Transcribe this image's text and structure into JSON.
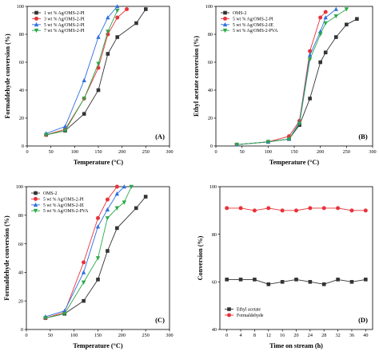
{
  "chart_data": [
    {
      "type": "line",
      "panel_label": "(A)",
      "xlabel": "Temperature (°C)",
      "ylabel": "Formaldehyde conversion (%)",
      "xlim": [
        0,
        300
      ],
      "ylim": [
        0,
        100
      ],
      "xticks": [
        0,
        50,
        100,
        150,
        200,
        250,
        300
      ],
      "yticks": [
        0,
        20,
        40,
        60,
        80,
        100
      ],
      "legend_position": "top-left",
      "series": [
        {
          "name": "1 wt % Ag/OMS-2-PI",
          "color": "#333333",
          "marker": "square",
          "x": [
            40,
            80,
            120,
            150,
            170,
            190,
            230,
            250
          ],
          "y": [
            8,
            11,
            23,
            40,
            66,
            78,
            88,
            98
          ]
        },
        {
          "name": "3 wt % Ag/OMS-2-PI",
          "color": "#e8333a",
          "marker": "circle",
          "x": [
            40,
            80,
            120,
            150,
            170,
            190,
            210
          ],
          "y": [
            8,
            12,
            34,
            56,
            80,
            92,
            98
          ]
        },
        {
          "name": "5 wt % Ag/OMS-2-PI",
          "color": "#2f6fe0",
          "marker": "triangle-up",
          "x": [
            40,
            80,
            120,
            150,
            170,
            190
          ],
          "y": [
            9,
            14,
            47,
            78,
            92,
            100
          ]
        },
        {
          "name": "7 wt % Ag/OMS-2-PI",
          "color": "#2aa84a",
          "marker": "triangle-down",
          "x": [
            40,
            80,
            120,
            150,
            170,
            190
          ],
          "y": [
            8,
            11,
            34,
            59,
            82,
            97
          ]
        }
      ]
    },
    {
      "type": "line",
      "panel_label": "(B)",
      "xlabel": "Temperature (°C)",
      "ylabel": "Ethyl acetate conversion (%)",
      "xlim": [
        0,
        300
      ],
      "ylim": [
        0,
        100
      ],
      "xticks": [
        0,
        50,
        100,
        150,
        200,
        250,
        300
      ],
      "yticks": [
        0,
        20,
        40,
        60,
        80,
        100
      ],
      "legend_position": "top-left",
      "series": [
        {
          "name": "OMS-2",
          "color": "#333333",
          "marker": "square",
          "x": [
            40,
            100,
            140,
            160,
            180,
            200,
            210,
            230,
            250,
            270
          ],
          "y": [
            1,
            3,
            5,
            15,
            34,
            60,
            67,
            78,
            87,
            91
          ]
        },
        {
          "name": "5 wt % Ag/OMS-2-PI",
          "color": "#e8333a",
          "marker": "circle",
          "x": [
            40,
            100,
            140,
            160,
            180,
            200,
            210
          ],
          "y": [
            1,
            3,
            7,
            18,
            68,
            92,
            96
          ]
        },
        {
          "name": "5 wt % Ag/OMS-2-IE",
          "color": "#2f6fe0",
          "marker": "triangle-up",
          "x": [
            40,
            100,
            140,
            160,
            180,
            200,
            210,
            230
          ],
          "y": [
            1,
            3,
            5,
            17,
            65,
            82,
            92,
            98
          ]
        },
        {
          "name": "5 wt % Ag/OMS-2-PVA",
          "color": "#2aa84a",
          "marker": "triangle-down",
          "x": [
            40,
            100,
            140,
            160,
            180,
            200,
            210,
            230,
            250
          ],
          "y": [
            1,
            3,
            5,
            16,
            62,
            80,
            88,
            93,
            98
          ]
        }
      ]
    },
    {
      "type": "line",
      "panel_label": "(C)",
      "xlabel": "Temperature (°C)",
      "ylabel": "Formaldehyde conversion (%)",
      "xlim": [
        0,
        300
      ],
      "ylim": [
        0,
        100
      ],
      "xticks": [
        0,
        50,
        100,
        150,
        200,
        250,
        300
      ],
      "yticks": [
        0,
        20,
        40,
        60,
        80,
        100
      ],
      "legend_position": "top-left",
      "series": [
        {
          "name": "OMS-2",
          "color": "#333333",
          "marker": "square",
          "x": [
            40,
            80,
            120,
            150,
            170,
            190,
            230,
            250
          ],
          "y": [
            8,
            11,
            20,
            35,
            55,
            71,
            85,
            93
          ]
        },
        {
          "name": "5 wt % Ag/OMS-2-PI",
          "color": "#e8333a",
          "marker": "circle",
          "x": [
            40,
            80,
            120,
            150,
            170,
            190
          ],
          "y": [
            8,
            12,
            47,
            78,
            91,
            100
          ]
        },
        {
          "name": "5 wt % Ag/OMS-2-IE",
          "color": "#2f6fe0",
          "marker": "triangle-up",
          "x": [
            40,
            80,
            120,
            150,
            170,
            190,
            205
          ],
          "y": [
            9,
            13,
            40,
            72,
            84,
            95,
            100
          ]
        },
        {
          "name": "5 wt % Ag/OMS-2-PVA",
          "color": "#2aa84a",
          "marker": "triangle-down",
          "x": [
            40,
            80,
            120,
            150,
            170,
            190,
            205,
            220
          ],
          "y": [
            8,
            11,
            33,
            50,
            78,
            85,
            89,
            100
          ]
        }
      ]
    },
    {
      "type": "line",
      "panel_label": "(D)",
      "xlabel": "Time on stream (h)",
      "ylabel": "Conversion (%)",
      "xlim": [
        -2,
        42
      ],
      "ylim": [
        40,
        100
      ],
      "xticks": [
        0,
        4,
        8,
        12,
        16,
        20,
        24,
        28,
        32,
        36,
        40
      ],
      "yticks": [
        40,
        60,
        80,
        100
      ],
      "legend_position": "bottom-left",
      "series": [
        {
          "name": "Ethyl acetate",
          "color": "#333333",
          "marker": "square",
          "x": [
            0,
            4,
            8,
            12,
            16,
            20,
            24,
            28,
            32,
            36,
            40
          ],
          "y": [
            61,
            61,
            61,
            59,
            60,
            61,
            60,
            59,
            61,
            60,
            61
          ]
        },
        {
          "name": "Formaldehyde",
          "color": "#e8333a",
          "marker": "circle",
          "x": [
            0,
            4,
            8,
            12,
            16,
            20,
            24,
            28,
            32,
            36,
            40
          ],
          "y": [
            91,
            91,
            90,
            91,
            90,
            90,
            91,
            91,
            91,
            90,
            90
          ]
        }
      ]
    }
  ]
}
